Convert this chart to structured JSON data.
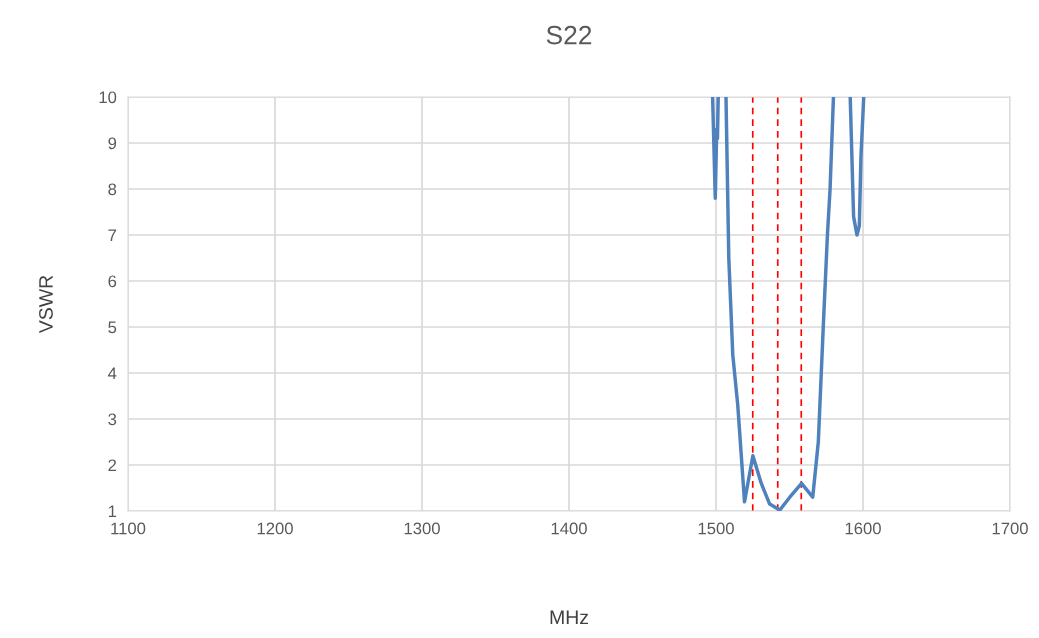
{
  "chart_data": {
    "type": "line",
    "title": "S22",
    "xlabel": "MHz",
    "ylabel": "VSWR",
    "x": [
      1497.7,
      1499.5,
      1500.5,
      1501.0,
      1501.5,
      null,
      1506.8,
      1508.7,
      1511.4,
      1514.8,
      1519.4,
      1525.1,
      1530.8,
      1536.5,
      1543.4,
      1550.2,
      1558.2,
      1565.8,
      1569.6,
      1573.1,
      1575.8,
      1577.6,
      1579.9,
      null,
      1591.3,
      1593.6,
      1595.9,
      1597.5,
      1598.6,
      1600.5
    ],
    "series": [
      {
        "color": "#4f81bd",
        "values": [
          10,
          7.8,
          9.3,
          9.1,
          10,
          null,
          10,
          6.5,
          4.4,
          3.3,
          1.2,
          2.2,
          1.6,
          1.15,
          1.02,
          1.3,
          1.6,
          1.3,
          2.5,
          5.1,
          7.0,
          8.0,
          10,
          null,
          10,
          7.4,
          7.0,
          7.2,
          8.7,
          10
        ]
      }
    ],
    "xlim": [
      1100,
      1700
    ],
    "xticks": [
      1100,
      1200,
      1300,
      1400,
      1500,
      1600,
      1700
    ],
    "ylim": [
      1,
      10
    ],
    "yticks": [
      1,
      2,
      3,
      4,
      5,
      6,
      7,
      8,
      9,
      10
    ],
    "grid": true,
    "legend": false,
    "line_style": "solid",
    "ref_lines": [
      {
        "axis": "x",
        "value": 1525,
        "color": "#ff0000",
        "line_style": "dashed"
      },
      {
        "axis": "x",
        "value": 1542,
        "color": "#ff0000",
        "line_style": "dashed"
      },
      {
        "axis": "x",
        "value": 1558,
        "color": "#ff0000",
        "line_style": "dashed"
      }
    ]
  }
}
